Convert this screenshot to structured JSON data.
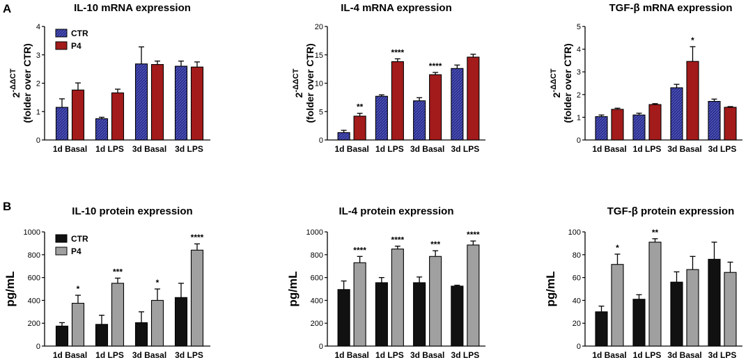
{
  "panel_labels": [
    "A",
    "B"
  ],
  "colors": {
    "ctr_blue": "#2b2f8f",
    "p4_red": "#a31b1b",
    "ctr_black": "#111111",
    "p4_gray": "#a0a0a0"
  },
  "chart_data": [
    {
      "type": "bar",
      "title": "IL-10 mRNA expression",
      "ylabel_sup": "-ΔΔCT",
      "ylabel_base": "2",
      "ylabel_line2": "(folder over CTR)",
      "ylim": [
        0,
        4
      ],
      "yticks": [
        0,
        1,
        2,
        3,
        4
      ],
      "categories": [
        "1d Basal",
        "1d LPS",
        "3d Basal",
        "3d LPS"
      ],
      "series": [
        {
          "name": "CTR",
          "values": [
            1.15,
            0.75,
            2.68,
            2.6
          ],
          "errors": [
            0.3,
            0.05,
            0.6,
            0.18
          ]
        },
        {
          "name": "P4",
          "values": [
            1.76,
            1.66,
            2.66,
            2.57
          ],
          "errors": [
            0.25,
            0.13,
            0.12,
            0.18
          ]
        }
      ],
      "significance": [
        "",
        "",
        "",
        ""
      ],
      "legend": {
        "entries": [
          "CTR",
          "P4"
        ],
        "position": "top-left"
      }
    },
    {
      "type": "bar",
      "title": "IL-4 mRNA expression",
      "ylabel_sup": "-ΔΔCT",
      "ylabel_base": "2",
      "ylabel_line2": "(folder over CTR)",
      "ylim": [
        0,
        20
      ],
      "yticks": [
        0,
        5,
        10,
        15,
        20
      ],
      "categories": [
        "1d Basal",
        "1d LPS",
        "3d Basal",
        "3d LPS"
      ],
      "series": [
        {
          "name": "CTR",
          "values": [
            1.3,
            7.7,
            6.9,
            12.6
          ],
          "errors": [
            0.4,
            0.25,
            0.55,
            0.6
          ]
        },
        {
          "name": "P4",
          "values": [
            4.2,
            13.8,
            11.5,
            14.6
          ],
          "errors": [
            0.5,
            0.5,
            0.4,
            0.5
          ]
        }
      ],
      "significance": [
        "**",
        "****",
        "****",
        ""
      ]
    },
    {
      "type": "bar",
      "title": "TGF-β mRNA expression",
      "ylabel_sup": "-ΔΔCT",
      "ylabel_base": "2",
      "ylabel_line2": "(folder over CTR)",
      "ylim": [
        0,
        5
      ],
      "yticks": [
        0,
        1,
        2,
        3,
        4,
        5
      ],
      "categories": [
        "1d Basal",
        "1d LPS",
        "3d Basal",
        "3d LPS"
      ],
      "series": [
        {
          "name": "CTR",
          "values": [
            1.03,
            1.1,
            2.3,
            1.7
          ],
          "errors": [
            0.07,
            0.08,
            0.15,
            0.1
          ]
        },
        {
          "name": "P4",
          "values": [
            1.35,
            1.56,
            3.46,
            1.44
          ],
          "errors": [
            0.05,
            0.04,
            0.65,
            0.03
          ]
        }
      ],
      "significance": [
        "",
        "",
        "*",
        ""
      ]
    },
    {
      "type": "bar",
      "title": "IL-10 protein expression",
      "ylabel": "pg/mL",
      "ylim": [
        0,
        1000
      ],
      "yticks": [
        0,
        200,
        400,
        600,
        800,
        1000
      ],
      "categories": [
        "1d Basal",
        "1d LPS",
        "3d Basal",
        "3d LPS"
      ],
      "series": [
        {
          "name": "CTR",
          "values": [
            175,
            190,
            205,
            425
          ],
          "errors": [
            30,
            80,
            95,
            125
          ]
        },
        {
          "name": "P4",
          "values": [
            375,
            550,
            400,
            840
          ],
          "errors": [
            70,
            45,
            100,
            55
          ]
        }
      ],
      "significance": [
        "*",
        "***",
        "*",
        "****"
      ],
      "legend": {
        "entries": [
          "CTR",
          "P4"
        ],
        "position": "top-left"
      }
    },
    {
      "type": "bar",
      "title": "IL-4 protein expression",
      "ylabel": "pg/mL",
      "ylim": [
        0,
        1000
      ],
      "yticks": [
        0,
        200,
        400,
        600,
        800,
        1000
      ],
      "categories": [
        "1d Basal",
        "1d LPS",
        "3d Basal",
        "3d LPS"
      ],
      "series": [
        {
          "name": "CTR",
          "values": [
            495,
            555,
            555,
            525
          ],
          "errors": [
            75,
            45,
            50,
            8
          ]
        },
        {
          "name": "P4",
          "values": [
            730,
            850,
            785,
            885
          ],
          "errors": [
            55,
            25,
            50,
            35
          ]
        }
      ],
      "significance": [
        "****",
        "****",
        "***",
        "****"
      ]
    },
    {
      "type": "bar",
      "title": "TGF-β protein expression",
      "ylabel": "pg/mL",
      "ylim": [
        0,
        100
      ],
      "yticks": [
        0,
        20,
        40,
        60,
        80,
        100
      ],
      "categories": [
        "1d Basal",
        "1d LPS",
        "3d Basal",
        "3d LPS"
      ],
      "series": [
        {
          "name": "CTR",
          "values": [
            30,
            41,
            56,
            76
          ],
          "errors": [
            5,
            4,
            9,
            15
          ]
        },
        {
          "name": "P4",
          "values": [
            71.5,
            91,
            67,
            64.5
          ],
          "errors": [
            9,
            3,
            11.5,
            9
          ]
        }
      ],
      "significance": [
        "*",
        "**",
        "",
        ""
      ]
    }
  ]
}
